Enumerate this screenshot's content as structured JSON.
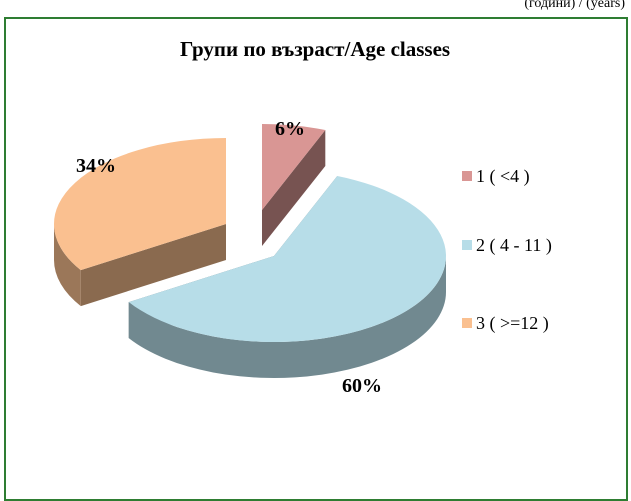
{
  "chart_data": {
    "type": "pie3d",
    "title": "Групи по възраст/Age classes",
    "annotation": "(години) / (years)",
    "categories": [
      "1 ( <4 )",
      "2 ( 4 - 11 )",
      "3 ( >=12 )"
    ],
    "values": [
      6,
      60,
      34
    ],
    "value_labels": [
      "6%",
      "60%",
      "34%"
    ],
    "colors": [
      "#d99694",
      "#b7dde8",
      "#fac090"
    ],
    "legend": "right"
  }
}
